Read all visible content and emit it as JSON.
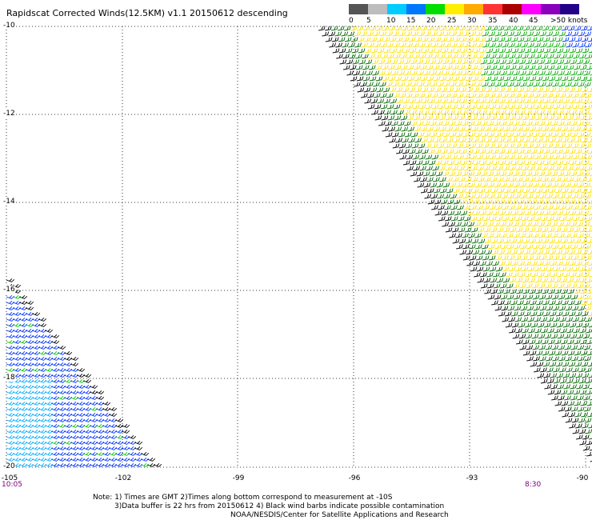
{
  "title": "Rapidscat Corrected Winds(12.5KM) v1.1 20150612 descending",
  "legend": {
    "labels": [
      "0",
      "5",
      "10",
      "15",
      "20",
      "25",
      "30",
      "35",
      "40",
      "45",
      ">50 knots"
    ],
    "colors": [
      "#555555",
      "#bdbdbd",
      "#00ccff",
      "#0077ff",
      "#00dd00",
      "#ffee00",
      "#ffaa00",
      "#ff3333",
      "#aa0000",
      "#ff00ff",
      "#8800bb",
      "#220088"
    ]
  },
  "axes": {
    "lat_labels": [
      "-10",
      "-12",
      "-14",
      "-16",
      "-18",
      "-20"
    ],
    "lon_labels": [
      "-105",
      "-102",
      "-99",
      "-96",
      "-93",
      "-90"
    ]
  },
  "time_labels": {
    "left": "10:05",
    "right": "8:30"
  },
  "notes": [
    "Note: 1) Times are GMT 2)Times along bottom correspond to measurement at -10S",
    "3)Data buffer is 22 hrs from 20150612 4) Black wind barbs indicate possible contamination",
    "NOAA/NESDIS/Center for Satellite Applications and Research"
  ],
  "map": {
    "grid": "dotted",
    "wind_barb_swaths": [
      "right-swath",
      "left-swath"
    ],
    "swath_colors": [
      "#000000",
      "#006600",
      "#00cc00",
      "#ffee00",
      "#0033ff",
      "#00aaff"
    ]
  }
}
